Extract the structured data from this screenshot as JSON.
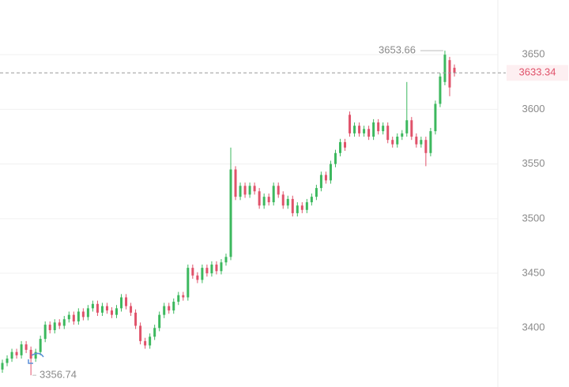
{
  "chart_data": {
    "type": "candlestick",
    "up_color": "#3cb85e",
    "down_color": "#e0526a",
    "ylim": [
      3346,
      3700
    ],
    "yticks": [
      3400,
      3450,
      3500,
      3550,
      3600,
      3650
    ],
    "grid": true,
    "last_price": 3633.34,
    "max_label": 3653.66,
    "min_label": 3356.74,
    "open": [
      3362,
      3368,
      3372,
      3378,
      3375,
      3385,
      3380,
      3372,
      3378,
      3390,
      3403,
      3398,
      3405,
      3402,
      3408,
      3412,
      3406,
      3415,
      3410,
      3418,
      3422,
      3414,
      3420,
      3416,
      3412,
      3418,
      3428,
      3420,
      3414,
      3402,
      3388,
      3384,
      3392,
      3400,
      3412,
      3420,
      3416,
      3424,
      3430,
      3428,
      3455,
      3448,
      3444,
      3455,
      3450,
      3458,
      3452,
      3460,
      3465,
      3545,
      3520,
      3530,
      3522,
      3530,
      3525,
      3512,
      3520,
      3515,
      3530,
      3522,
      3512,
      3518,
      3505,
      3512,
      3508,
      3515,
      3520,
      3528,
      3540,
      3535,
      3550,
      3560,
      3570,
      3595,
      3578,
      3585,
      3578,
      3582,
      3575,
      3588,
      3580,
      3585,
      3572,
      3568,
      3575,
      3578,
      3590,
      3575,
      3568,
      3572,
      3560,
      3580,
      3605,
      3625,
      3645,
      3638
    ],
    "high": [
      3371,
      3375,
      3381,
      3381,
      3388,
      3388,
      3383,
      3381,
      3393,
      3406,
      3406,
      3408,
      3408,
      3411,
      3415,
      3415,
      3418,
      3418,
      3421,
      3425,
      3425,
      3423,
      3423,
      3419,
      3421,
      3431,
      3431,
      3423,
      3417,
      3405,
      3391,
      3395,
      3403,
      3415,
      3423,
      3423,
      3427,
      3433,
      3433,
      3458,
      3458,
      3451,
      3458,
      3458,
      3461,
      3461,
      3463,
      3468,
      3565,
      3548,
      3533,
      3533,
      3533,
      3533,
      3528,
      3523,
      3523,
      3533,
      3533,
      3525,
      3521,
      3521,
      3515,
      3515,
      3518,
      3523,
      3531,
      3543,
      3543,
      3553,
      3563,
      3573,
      3573,
      3598,
      3588,
      3588,
      3585,
      3585,
      3591,
      3591,
      3588,
      3588,
      3575,
      3578,
      3581,
      3625,
      3593,
      3578,
      3575,
      3575,
      3583,
      3608,
      3633,
      3653.66,
      3648,
      3641
    ],
    "low": [
      3359,
      3365,
      3369,
      3372,
      3372,
      3377,
      3356.74,
      3369,
      3375,
      3387,
      3395,
      3395,
      3399,
      3399,
      3405,
      3403,
      3403,
      3407,
      3407,
      3415,
      3411,
      3411,
      3413,
      3409,
      3409,
      3415,
      3417,
      3411,
      3399,
      3385,
      3381,
      3381,
      3389,
      3397,
      3409,
      3413,
      3413,
      3421,
      3425,
      3425,
      3445,
      3441,
      3441,
      3447,
      3447,
      3449,
      3449,
      3457,
      3462,
      3517,
      3517,
      3519,
      3519,
      3522,
      3509,
      3509,
      3512,
      3512,
      3519,
      3509,
      3509,
      3502,
      3502,
      3505,
      3505,
      3512,
      3517,
      3525,
      3532,
      3532,
      3547,
      3557,
      3562,
      3575,
      3575,
      3575,
      3575,
      3572,
      3572,
      3577,
      3577,
      3569,
      3565,
      3565,
      3572,
      3575,
      3572,
      3565,
      3565,
      3548,
      3557,
      3577,
      3602,
      3622,
      3612,
      3630
    ],
    "close": [
      3368,
      3372,
      3378,
      3375,
      3385,
      3380,
      3372,
      3378,
      3390,
      3403,
      3398,
      3405,
      3402,
      3408,
      3412,
      3406,
      3415,
      3410,
      3418,
      3422,
      3414,
      3420,
      3416,
      3412,
      3418,
      3428,
      3420,
      3414,
      3402,
      3388,
      3384,
      3392,
      3400,
      3412,
      3420,
      3416,
      3424,
      3430,
      3428,
      3455,
      3448,
      3444,
      3455,
      3450,
      3458,
      3452,
      3460,
      3465,
      3545,
      3520,
      3530,
      3522,
      3530,
      3525,
      3512,
      3520,
      3515,
      3530,
      3522,
      3512,
      3518,
      3505,
      3512,
      3508,
      3515,
      3520,
      3528,
      3540,
      3535,
      3550,
      3560,
      3570,
      3565,
      3578,
      3585,
      3578,
      3582,
      3575,
      3588,
      3580,
      3585,
      3572,
      3568,
      3575,
      3578,
      3590,
      3575,
      3568,
      3572,
      3560,
      3580,
      3605,
      3630,
      3650,
      3620,
      3633.34
    ]
  }
}
